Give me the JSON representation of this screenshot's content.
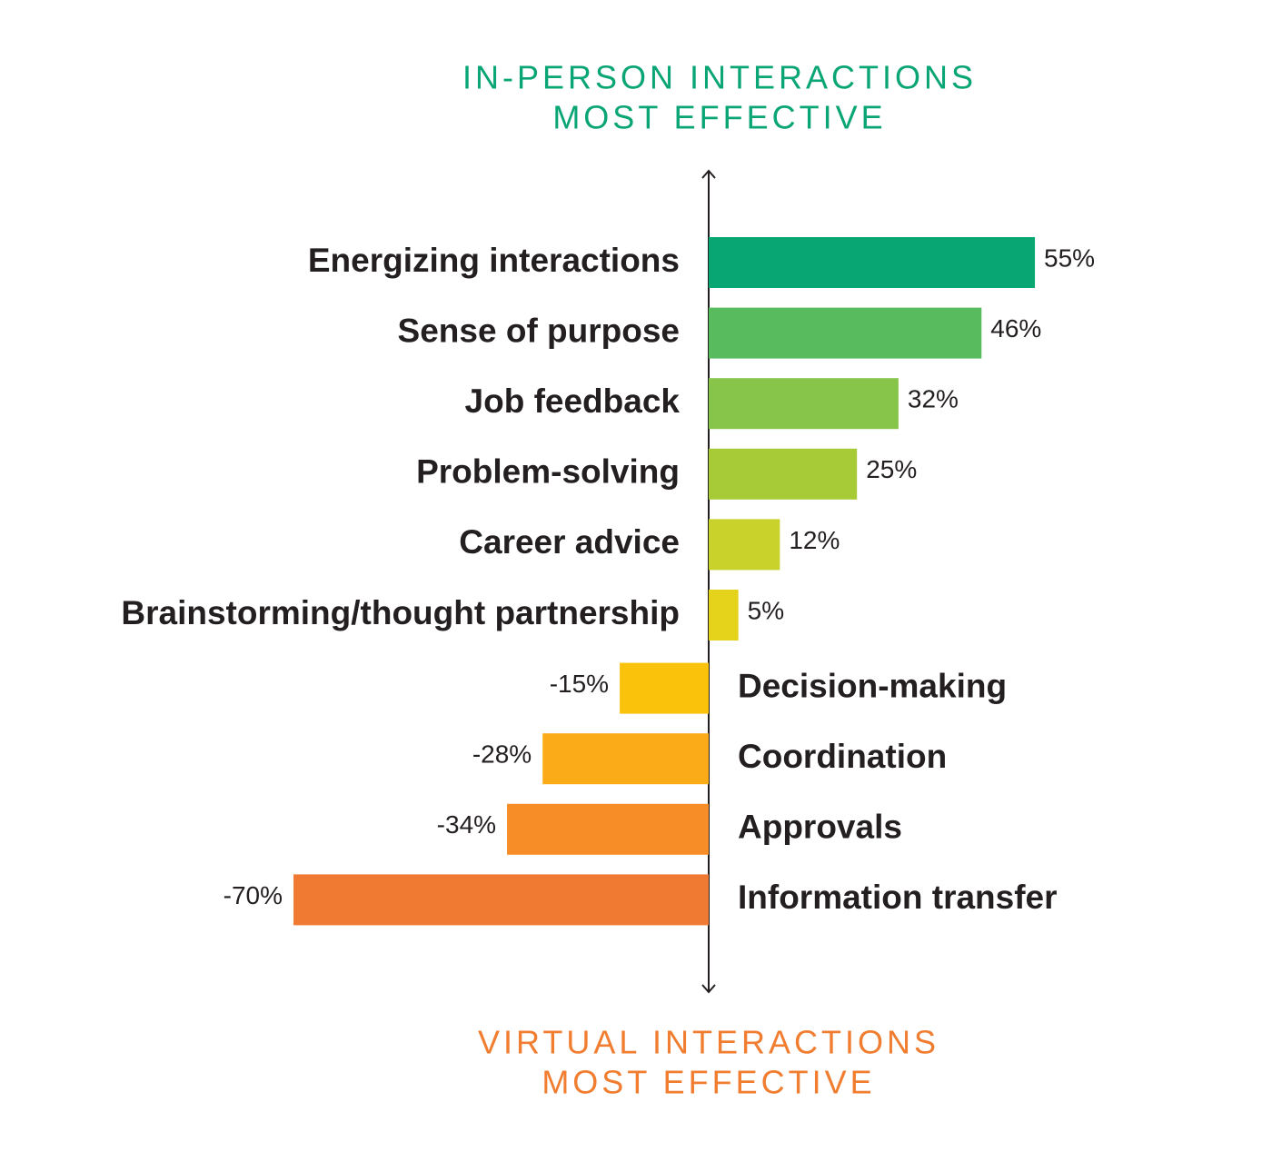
{
  "chart_data": {
    "type": "bar",
    "orientation": "horizontal",
    "top_label": [
      "IN-PERSON INTERACTIONS",
      "MOST EFFECTIVE"
    ],
    "bottom_label": [
      "VIRTUAL INTERACTIONS",
      "MOST EFFECTIVE"
    ],
    "top_color": "#0aa574",
    "bottom_color": "#f07d30",
    "categories": [
      "Energizing interactions",
      "Sense of purpose",
      "Job feedback",
      "Problem-solving",
      "Career advice",
      "Brainstorming/thought partnership",
      "Decision-making",
      "Coordination",
      "Approvals",
      "Information transfer"
    ],
    "values": [
      55,
      46,
      32,
      25,
      12,
      5,
      -15,
      -28,
      -34,
      -70
    ],
    "value_labels": [
      "55%",
      "46%",
      "32%",
      "25%",
      "12%",
      "5%",
      "-15%",
      "-28%",
      "-34%",
      "-70%"
    ],
    "colors": [
      "#08a673",
      "#58bb5d",
      "#86c44a",
      "#a6cb37",
      "#c9d22a",
      "#e5d21a",
      "#fbc20b",
      "#fbab17",
      "#f68d27",
      "#f07a31"
    ]
  }
}
